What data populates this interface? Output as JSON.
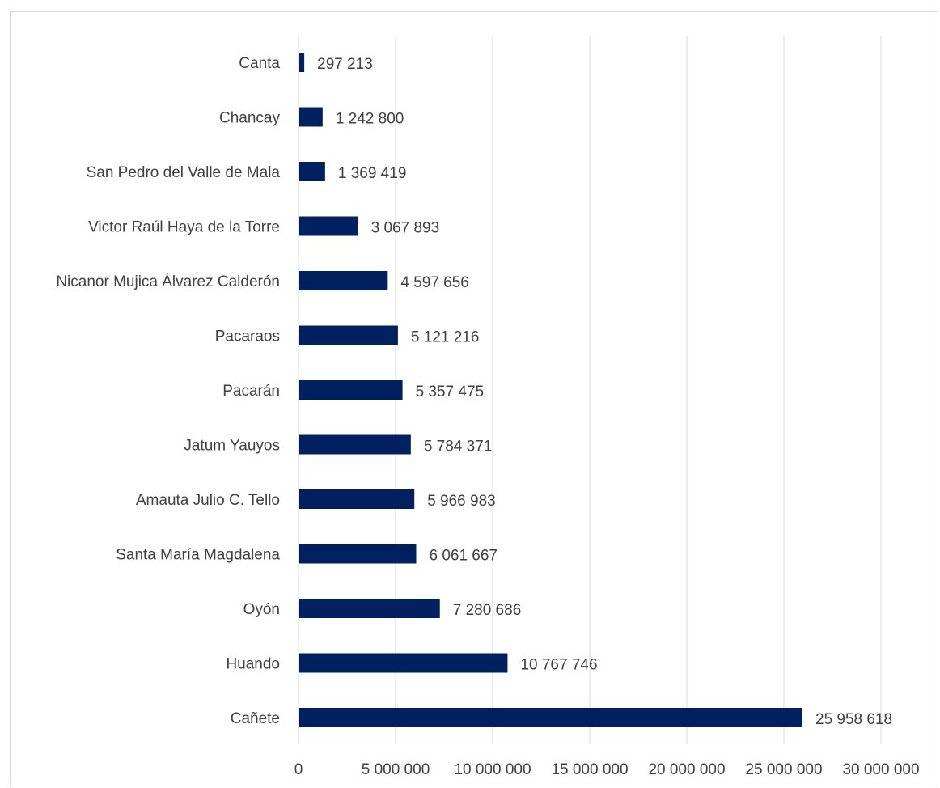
{
  "chart_data": {
    "type": "bar",
    "orientation": "horizontal",
    "title": "",
    "xlabel": "",
    "ylabel": "",
    "categories": [
      "Canta",
      "Chancay",
      "San Pedro del Valle de Mala",
      "Victor Raúl Haya de la Torre",
      "Nicanor Mujica Álvarez Calderón",
      "Pacaraos",
      "Pacarán",
      "Jatum Yauyos",
      "Amauta Julio C. Tello",
      "Santa María Magdalena",
      "Oyón",
      "Huando",
      "Cañete"
    ],
    "values": [
      297213,
      1242800,
      1369419,
      3067893,
      4597656,
      5121216,
      5357475,
      5784371,
      5966983,
      6061667,
      7280686,
      10767746,
      25958618
    ],
    "value_labels": [
      "297 213",
      "1 242 800",
      "1 369 419",
      "3 067 893",
      "4 597 656",
      "5 121 216",
      "5 357 475",
      "5 784 371",
      "5 966 983",
      "6 061 667",
      "7 280 686",
      "10 767 746",
      "25 958 618"
    ],
    "xlim": [
      0,
      30000000
    ],
    "x_ticks": [
      0,
      5000000,
      10000000,
      15000000,
      20000000,
      25000000,
      30000000
    ],
    "x_tick_labels": [
      "0",
      "5 000 000",
      "10 000 000",
      "15 000 000",
      "20 000 000",
      "25 000 000",
      "30 000 000"
    ],
    "grid": "vertical",
    "legend": "none",
    "bar_color": "#002060",
    "grid_color": "#d9d9d9"
  }
}
